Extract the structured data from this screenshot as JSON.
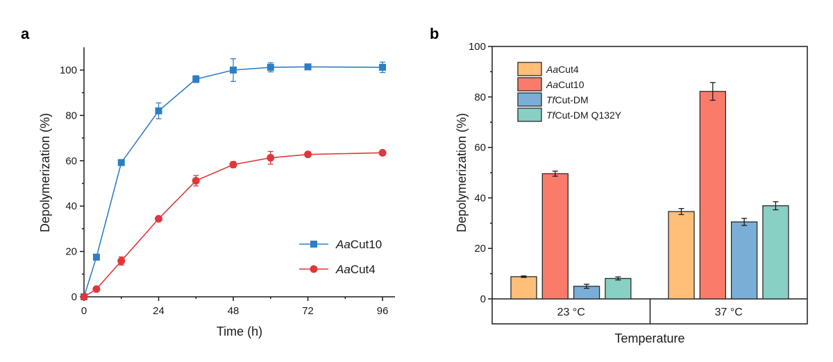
{
  "chart_data": [
    {
      "panel": "a",
      "type": "line",
      "title": "",
      "xlabel": "Time (h)",
      "ylabel": "Depolymerization (%)",
      "xlim": [
        0,
        100
      ],
      "ylim": [
        0,
        110
      ],
      "xticks": [
        0,
        24,
        48,
        72,
        96
      ],
      "xminor": [
        12,
        36,
        60,
        84
      ],
      "yticks": [
        0,
        20,
        40,
        60,
        80,
        100
      ],
      "yminor": [
        10,
        30,
        50,
        70,
        90
      ],
      "grid": false,
      "legend_position": "bottom-right",
      "series": [
        {
          "name": "AaCut10",
          "name_italic": "Aa",
          "name_rest": "Cut10",
          "color": "#2f7dc4",
          "marker": "square",
          "x": [
            0,
            4,
            12,
            24,
            36,
            48,
            60,
            72,
            96
          ],
          "y": [
            0,
            17.5,
            59.2,
            82.0,
            96.0,
            100.0,
            101.2,
            101.4,
            101.2
          ],
          "err": [
            0,
            0.5,
            0.6,
            3.5,
            1.5,
            5.0,
            2.0,
            1.0,
            2.3
          ]
        },
        {
          "name": "AaCut4",
          "name_italic": "Aa",
          "name_rest": "Cut4",
          "color": "#e0363c",
          "marker": "circle",
          "x": [
            0,
            4,
            12,
            24,
            36,
            48,
            60,
            72,
            96
          ],
          "y": [
            0,
            3.4,
            15.8,
            34.4,
            51.2,
            58.3,
            61.3,
            62.8,
            63.5
          ],
          "err": [
            0,
            0.4,
            1.8,
            1.0,
            2.3,
            1.3,
            2.8,
            0.6,
            0.7
          ]
        }
      ]
    },
    {
      "panel": "b",
      "type": "bar",
      "title": "",
      "xlabel": "Temperature",
      "ylabel": "Depolymerization (%)",
      "ylim": [
        0,
        100
      ],
      "yticks": [
        0,
        20,
        40,
        60,
        80,
        100
      ],
      "yminor": [
        10,
        30,
        50,
        70,
        90
      ],
      "grid": false,
      "legend_position": "top-left",
      "categories": [
        "23 °C",
        "37 °C"
      ],
      "series": [
        {
          "name": "AaCut4",
          "name_italic": "Aa",
          "name_rest": "Cut4",
          "color": "#ffbf78",
          "values": [
            8.8,
            34.6
          ],
          "err": [
            0.3,
            1.2
          ]
        },
        {
          "name": "AaCut10",
          "name_italic": "Aa",
          "name_rest": "Cut10",
          "color": "#fb7b6b",
          "values": [
            49.6,
            82.2
          ],
          "err": [
            1.0,
            3.5
          ]
        },
        {
          "name": "TfCut-DM",
          "name_italic": "Tf",
          "name_rest": "Cut-DM",
          "color": "#7baed6",
          "values": [
            5.0,
            30.5
          ],
          "err": [
            0.8,
            1.4
          ]
        },
        {
          "name": "TfCut-DM Q132Y",
          "name_italic": "Tf",
          "name_rest": "Cut-DM Q132Y",
          "color": "#88cfc4",
          "values": [
            8.1,
            36.9
          ],
          "err": [
            0.6,
            1.6
          ]
        }
      ]
    }
  ],
  "panels": {
    "a_label": "a",
    "b_label": "b"
  }
}
